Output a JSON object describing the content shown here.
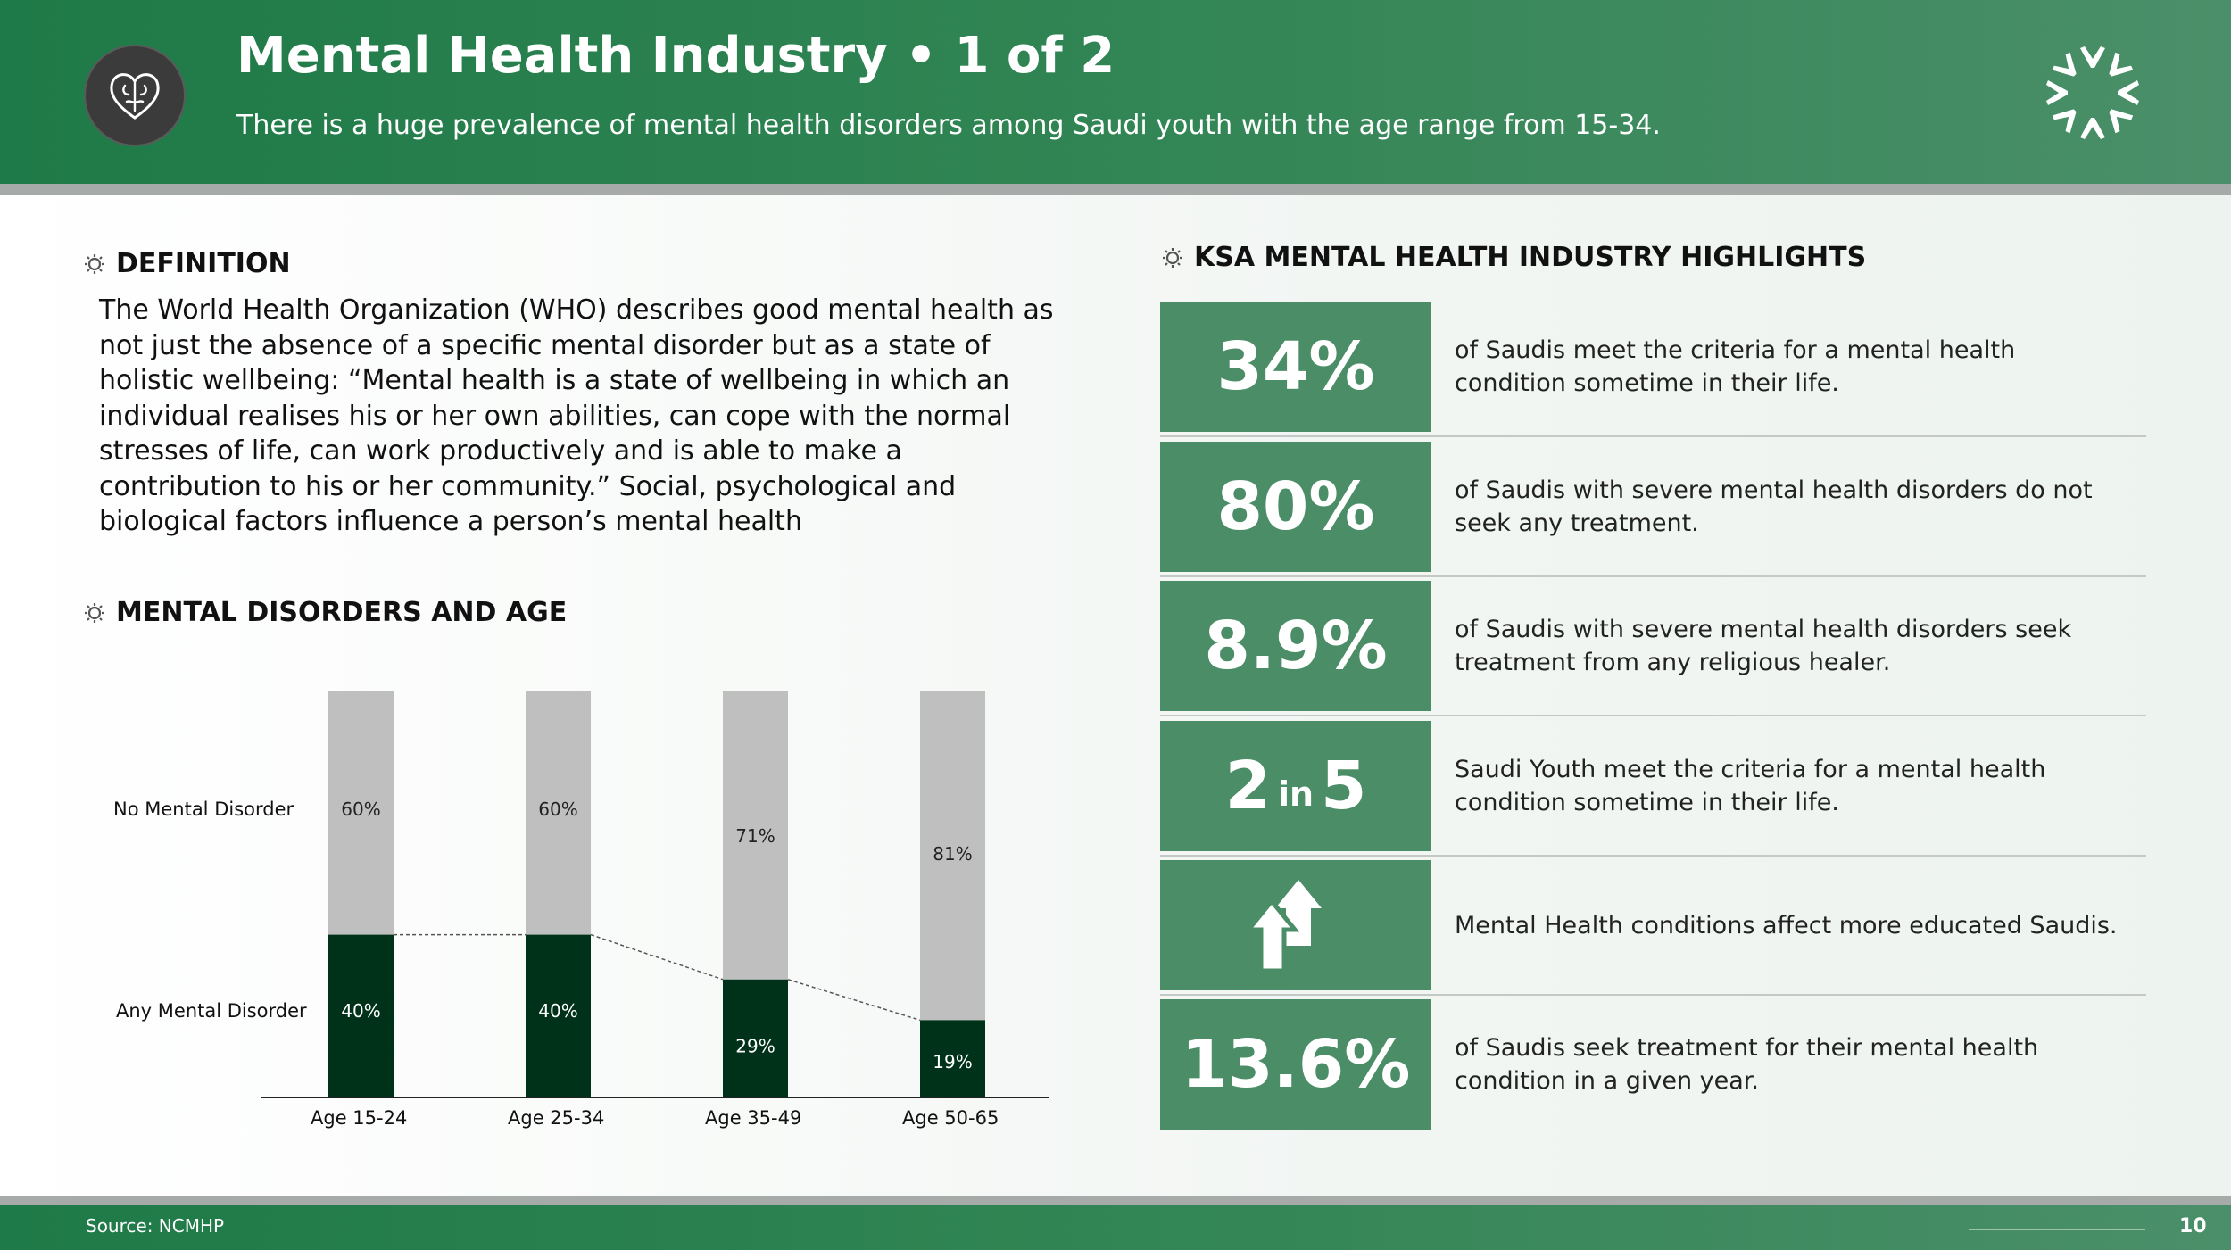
{
  "header": {
    "title": "Mental Health Industry • 1 of 2",
    "subtitle": "There is a huge prevalence of mental health disorders among Saudi youth with the age range from 15-34."
  },
  "definition": {
    "heading": "DEFINITION",
    "text": "The World Health Organization (WHO) describes good mental health as not just the absence of a specific mental disorder but as a state of holistic wellbeing: “Mental health is a state of wellbeing in which an individual realises his or her own abilities, can cope with the normal stresses of life, can work productively and is able to make a contribution to his or her community.” Social, psychological and biological factors influence a person’s mental health"
  },
  "chart_section": {
    "heading": "MENTAL DISORDERS AND AGE"
  },
  "chart_data": {
    "type": "bar",
    "stacked": true,
    "categories": [
      "Age 15-24",
      "Age 25-34",
      "Age 35-49",
      "Age 50-65"
    ],
    "series": [
      {
        "name": "Any Mental Disorder",
        "values": [
          40,
          40,
          29,
          19
        ],
        "labels": [
          "40%",
          "40%",
          "29%",
          "19%"
        ],
        "color": "#003219"
      },
      {
        "name": "No Mental Disorder",
        "values": [
          60,
          60,
          71,
          81
        ],
        "labels": [
          "60%",
          "60%",
          "71%",
          "81%"
        ],
        "color": "#bfbfbf"
      }
    ],
    "ylim": [
      0,
      100
    ],
    "connector_lines": "dashed between tops of Any Mental Disorder segments",
    "legend": "left of bars, aligned to segments"
  },
  "highlights": {
    "heading": "KSA MENTAL HEALTH INDUSTRY HIGHLIGHTS",
    "box_color": "#4a8d66",
    "items": [
      {
        "stat": "34%",
        "text": "of Saudis meet the criteria for a mental health condition sometime in their life."
      },
      {
        "stat": "80%",
        "text": "of Saudis with severe mental health disorders do not seek any treatment."
      },
      {
        "stat": "8.9%",
        "text": "of Saudis with severe mental health disorders seek treatment from any religious healer."
      },
      {
        "stat_a": "2",
        "stat_mid": "in",
        "stat_b": "5",
        "text": "Saudi Youth meet the criteria for a mental health condition sometime in their life."
      },
      {
        "icon": "up-arrows-icon",
        "text": "Mental Health conditions affect more educated Saudis."
      },
      {
        "stat": "13.6%",
        "text": "of Saudis seek treatment for their mental health condition in a given year."
      }
    ]
  },
  "footer": {
    "source": "Source: NCMHP",
    "page": "10"
  }
}
